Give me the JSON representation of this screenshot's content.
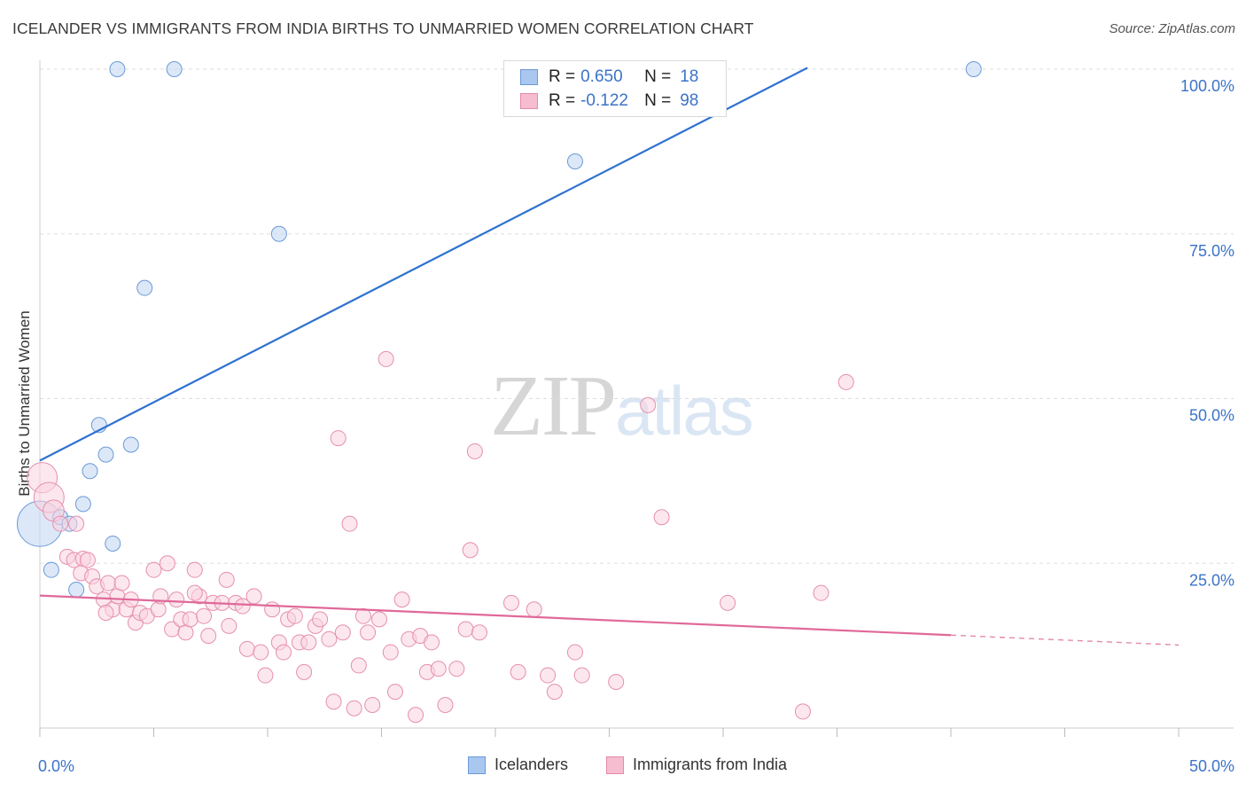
{
  "header": {
    "title": "ICELANDER VS IMMIGRANTS FROM INDIA BIRTHS TO UNMARRIED WOMEN CORRELATION CHART",
    "source": "Source: ZipAtlas.com"
  },
  "watermark": {
    "zip": "ZIP",
    "atlas": "atlas"
  },
  "legend": {
    "rows": [
      {
        "r_label": "R =",
        "r_value": "0.650",
        "n_label": "N =",
        "n_value": "18",
        "color": "#a9c7ef",
        "edge": "#6b9ad8"
      },
      {
        "r_label": "R =",
        "r_value": "-0.122",
        "n_label": "N =",
        "n_value": "98",
        "color": "#f6bccf",
        "edge": "#e58aa8"
      }
    ]
  },
  "bottom_legend": {
    "icelanders": "Icelanders",
    "india": "Immigrants from India"
  },
  "chart_data": {
    "type": "scatter",
    "title": "ICELANDER VS IMMIGRANTS FROM INDIA BIRTHS TO UNMARRIED WOMEN CORRELATION CHART",
    "xlabel": "",
    "ylabel": "Births to Unmarried Women",
    "xlim": [
      0,
      50
    ],
    "ylim": [
      0,
      100
    ],
    "x_tick_labels": {
      "left": "0.0%",
      "right": "50.0%"
    },
    "y_ticks": [
      {
        "value": 25,
        "label": "25.0%"
      },
      {
        "value": 50,
        "label": "50.0%"
      },
      {
        "value": 75,
        "label": "75.0%"
      },
      {
        "value": 100,
        "label": "100.0%"
      }
    ],
    "colors": {
      "icelanders_fill": "#c9dcf5",
      "icelanders_edge": "#6b9ad8",
      "icelanders_line": "#2f72d0",
      "india_fill": "#f9d3e0",
      "india_edge": "#e68fad",
      "india_line": "#e0699a",
      "grid": "#dddddd",
      "tick_label": "#3b73c8"
    },
    "series": [
      {
        "name": "Icelanders",
        "trend": {
          "x0": 0,
          "y0": 40.6,
          "x1": 33.7,
          "y1": 100.2
        },
        "points": [
          [
            0.0,
            31.0,
            3
          ],
          [
            0.5,
            24.0,
            1
          ],
          [
            0.9,
            32.0,
            1
          ],
          [
            1.3,
            31.0,
            1
          ],
          [
            1.6,
            21.0,
            1
          ],
          [
            1.9,
            34.0,
            1
          ],
          [
            2.2,
            39.0,
            1
          ],
          [
            2.6,
            46.0,
            1
          ],
          [
            2.9,
            41.5,
            1
          ],
          [
            3.2,
            28.0,
            1
          ],
          [
            3.4,
            100.0,
            1
          ],
          [
            4.0,
            43.0,
            1
          ],
          [
            4.6,
            66.8,
            1
          ],
          [
            5.9,
            100.0,
            1
          ],
          [
            10.5,
            75.0,
            1
          ],
          [
            23.5,
            86.0,
            1
          ],
          [
            41.0,
            100.0,
            1
          ]
        ]
      },
      {
        "name": "Immigrants from India",
        "trend": {
          "x0": 0,
          "y0": 20.1,
          "x1": 40.0,
          "y1": 14.1,
          "dash_to_x": 50.0,
          "dash_to_y": 12.6
        },
        "points": [
          [
            0.1,
            38.0,
            2
          ],
          [
            0.4,
            35.0,
            2
          ],
          [
            0.6,
            33.0,
            1.4
          ],
          [
            0.9,
            31.0,
            1
          ],
          [
            1.2,
            26.0,
            1
          ],
          [
            1.5,
            25.5,
            1
          ],
          [
            1.8,
            23.5,
            1
          ],
          [
            1.9,
            25.7,
            1
          ],
          [
            2.1,
            25.5,
            1
          ],
          [
            2.3,
            23.0,
            1
          ],
          [
            2.5,
            21.5,
            1
          ],
          [
            2.8,
            19.5,
            1
          ],
          [
            3.0,
            22.0,
            1
          ],
          [
            3.2,
            18.0,
            1
          ],
          [
            3.4,
            20.0,
            1
          ],
          [
            3.6,
            22.0,
            1
          ],
          [
            3.8,
            18.0,
            1
          ],
          [
            4.0,
            19.5,
            1
          ],
          [
            4.2,
            16.0,
            1
          ],
          [
            4.4,
            17.5,
            1
          ],
          [
            4.7,
            17.0,
            1
          ],
          [
            5.0,
            24.0,
            1
          ],
          [
            5.2,
            18.0,
            1
          ],
          [
            5.3,
            20.0,
            1
          ],
          [
            5.6,
            25.0,
            1
          ],
          [
            5.8,
            15.0,
            1
          ],
          [
            6.0,
            19.5,
            1
          ],
          [
            6.2,
            16.5,
            1
          ],
          [
            6.4,
            14.5,
            1
          ],
          [
            6.6,
            16.5,
            1
          ],
          [
            6.8,
            24.0,
            1
          ],
          [
            7.0,
            20.0,
            1
          ],
          [
            7.2,
            17.0,
            1
          ],
          [
            7.4,
            14.0,
            1
          ],
          [
            7.6,
            19.0,
            1
          ],
          [
            8.0,
            19.0,
            1
          ],
          [
            8.2,
            22.5,
            1
          ],
          [
            8.3,
            15.5,
            1
          ],
          [
            8.6,
            19.0,
            1
          ],
          [
            8.9,
            18.5,
            1
          ],
          [
            9.1,
            12.0,
            1
          ],
          [
            9.4,
            20.0,
            1
          ],
          [
            9.7,
            11.5,
            1
          ],
          [
            9.9,
            8.0,
            1
          ],
          [
            10.2,
            18.0,
            1
          ],
          [
            10.5,
            13.0,
            1
          ],
          [
            10.7,
            11.5,
            1
          ],
          [
            10.9,
            16.5,
            1
          ],
          [
            11.2,
            17.0,
            1
          ],
          [
            11.4,
            13.0,
            1
          ],
          [
            11.6,
            8.5,
            1
          ],
          [
            11.8,
            13.0,
            1
          ],
          [
            12.1,
            15.5,
            1
          ],
          [
            12.3,
            16.5,
            1
          ],
          [
            12.7,
            13.5,
            1
          ],
          [
            12.9,
            4.0,
            1
          ],
          [
            13.1,
            44.0,
            1
          ],
          [
            13.3,
            14.5,
            1
          ],
          [
            13.6,
            31.0,
            1
          ],
          [
            13.8,
            3.0,
            1
          ],
          [
            14.0,
            9.5,
            1
          ],
          [
            14.2,
            17.0,
            1
          ],
          [
            14.4,
            14.5,
            1
          ],
          [
            14.6,
            3.5,
            1
          ],
          [
            14.9,
            16.5,
            1
          ],
          [
            15.2,
            56.0,
            1
          ],
          [
            15.4,
            11.5,
            1
          ],
          [
            15.6,
            5.5,
            1
          ],
          [
            15.9,
            19.5,
            1
          ],
          [
            16.2,
            13.5,
            1
          ],
          [
            16.5,
            2.0,
            1
          ],
          [
            16.7,
            14.0,
            1
          ],
          [
            17.0,
            8.5,
            1
          ],
          [
            17.2,
            13.0,
            1
          ],
          [
            17.5,
            9.0,
            1
          ],
          [
            17.8,
            3.5,
            1
          ],
          [
            18.3,
            9.0,
            1
          ],
          [
            18.7,
            15.0,
            1
          ],
          [
            18.9,
            27.0,
            1
          ],
          [
            19.1,
            42.0,
            1
          ],
          [
            19.3,
            14.5,
            1
          ],
          [
            20.7,
            19.0,
            1
          ],
          [
            21.0,
            8.5,
            1
          ],
          [
            21.7,
            18.0,
            1
          ],
          [
            22.3,
            8.0,
            1
          ],
          [
            22.6,
            5.5,
            1
          ],
          [
            23.5,
            11.5,
            1
          ],
          [
            23.8,
            8.0,
            1
          ],
          [
            25.3,
            7.0,
            1
          ],
          [
            26.7,
            49.0,
            1
          ],
          [
            27.3,
            32.0,
            1
          ],
          [
            30.2,
            19.0,
            1
          ],
          [
            33.5,
            2.5,
            1
          ],
          [
            34.3,
            20.5,
            1
          ],
          [
            35.4,
            52.5,
            1
          ],
          [
            1.6,
            31.0,
            1
          ],
          [
            2.9,
            17.5,
            1
          ],
          [
            6.8,
            20.5,
            1
          ]
        ]
      }
    ]
  }
}
